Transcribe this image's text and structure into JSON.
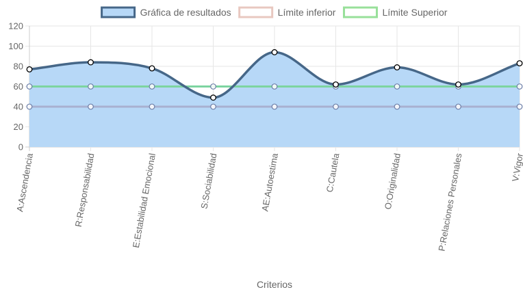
{
  "chart_data": {
    "type": "line",
    "categories": [
      "A:Ascendencia",
      "R:Responsabilidad",
      "E:Estabilidad Emocional",
      "S:Sociabilidad",
      "AE:Autoestima",
      "C:Cautela",
      "O:Originalidad",
      "P:Relaciones Personales",
      "V:Vigor"
    ],
    "series": [
      {
        "name": "Gráfica de resultados",
        "values": [
          77,
          84,
          78,
          49,
          94,
          62,
          79,
          62,
          83
        ],
        "color": "#466788",
        "fill": "#b7d8f7",
        "area": true
      },
      {
        "name": "Límite inferior",
        "values": [
          40,
          40,
          40,
          40,
          40,
          40,
          40,
          40,
          40
        ],
        "color": "#a8b0d0",
        "legend_color": "#e8c8c0",
        "area": false
      },
      {
        "name": "Límite Superior",
        "values": [
          60,
          60,
          60,
          60,
          60,
          60,
          60,
          60,
          60
        ],
        "color": "#7dd4a0",
        "legend_color": "#98e09a",
        "area": false
      }
    ],
    "xlabel": "Criterios",
    "ylabel": "",
    "ylim": [
      0,
      120
    ],
    "yticks": [
      0,
      20,
      40,
      60,
      80,
      100,
      120
    ],
    "grid": true,
    "legend": "top-center"
  }
}
